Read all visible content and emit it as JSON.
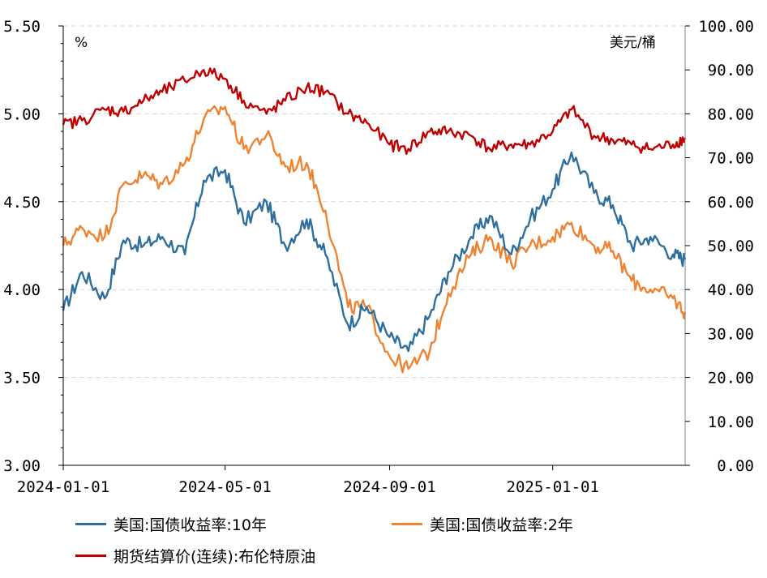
{
  "chart_data": {
    "type": "line",
    "left_axis": {
      "unit": "%",
      "ylim": [
        3.0,
        5.5
      ],
      "tick_labels": [
        "3.00",
        "3.50",
        "4.00",
        "4.50",
        "5.00",
        "5.50"
      ],
      "tick_values": [
        3.0,
        3.5,
        4.0,
        4.5,
        5.0,
        5.5
      ]
    },
    "right_axis": {
      "unit": "美元/桶",
      "ylim": [
        0,
        100
      ],
      "tick_labels": [
        "0.00",
        "10.00",
        "20.00",
        "30.00",
        "40.00",
        "50.00",
        "60.00",
        "70.00",
        "80.00",
        "90.00",
        "100.00"
      ],
      "tick_values": [
        0,
        10,
        20,
        30,
        40,
        50,
        60,
        70,
        80,
        90,
        100
      ]
    },
    "x_axis": {
      "range": [
        "2024-01-01",
        "2025-04-10"
      ],
      "tick_labels": [
        "2024-01-01",
        "2024-05-01",
        "2024-09-01",
        "2025-01-01"
      ],
      "tick_values": [
        "2024-01-01",
        "2024-05-01",
        "2024-09-01",
        "2025-01-01"
      ]
    },
    "grid": "horizontal dashed",
    "legend_position": "bottom",
    "x": [
      "2024-01-01",
      "2024-01-15",
      "2024-02-01",
      "2024-02-15",
      "2024-03-01",
      "2024-03-15",
      "2024-04-01",
      "2024-04-15",
      "2024-05-01",
      "2024-05-15",
      "2024-06-01",
      "2024-06-15",
      "2024-07-01",
      "2024-07-15",
      "2024-08-01",
      "2024-08-15",
      "2024-09-01",
      "2024-09-15",
      "2024-10-01",
      "2024-10-15",
      "2024-11-01",
      "2024-11-15",
      "2024-12-01",
      "2024-12-15",
      "2025-01-01",
      "2025-01-15",
      "2025-02-01",
      "2025-02-15",
      "2025-03-01",
      "2025-03-15",
      "2025-04-01",
      "2025-04-10"
    ],
    "series": [
      {
        "name": "美国:国债收益率:10年",
        "axis": "left",
        "color": "#2e6f9e",
        "values": [
          3.88,
          4.1,
          3.95,
          4.28,
          4.25,
          4.3,
          4.2,
          4.62,
          4.68,
          4.38,
          4.5,
          4.25,
          4.4,
          4.2,
          3.8,
          3.9,
          3.73,
          3.65,
          3.85,
          4.1,
          4.3,
          4.42,
          4.2,
          4.4,
          4.57,
          4.78,
          4.55,
          4.48,
          4.25,
          4.3,
          4.2,
          4.17
        ]
      },
      {
        "name": "美国:国债收益率:2年",
        "axis": "left",
        "color": "#ee8433",
        "values": [
          4.25,
          4.35,
          4.3,
          4.6,
          4.65,
          4.6,
          4.72,
          4.97,
          5.04,
          4.8,
          4.88,
          4.7,
          4.72,
          4.45,
          3.9,
          3.9,
          3.62,
          3.55,
          3.65,
          3.98,
          4.2,
          4.3,
          4.15,
          4.25,
          4.3,
          4.38,
          4.25,
          4.22,
          4.05,
          4.0,
          3.95,
          3.87
        ]
      },
      {
        "name": "期货结算价(连续):布伦特原油",
        "axis": "right",
        "color": "#c00000",
        "values": [
          77.5,
          78.5,
          81,
          80.5,
          83,
          85,
          87.5,
          90,
          88,
          83,
          80,
          83,
          86,
          85,
          80,
          78,
          73,
          72,
          76,
          76,
          75,
          72,
          73,
          73,
          76,
          81,
          75,
          74,
          73,
          72,
          73,
          74.5
        ]
      }
    ]
  }
}
